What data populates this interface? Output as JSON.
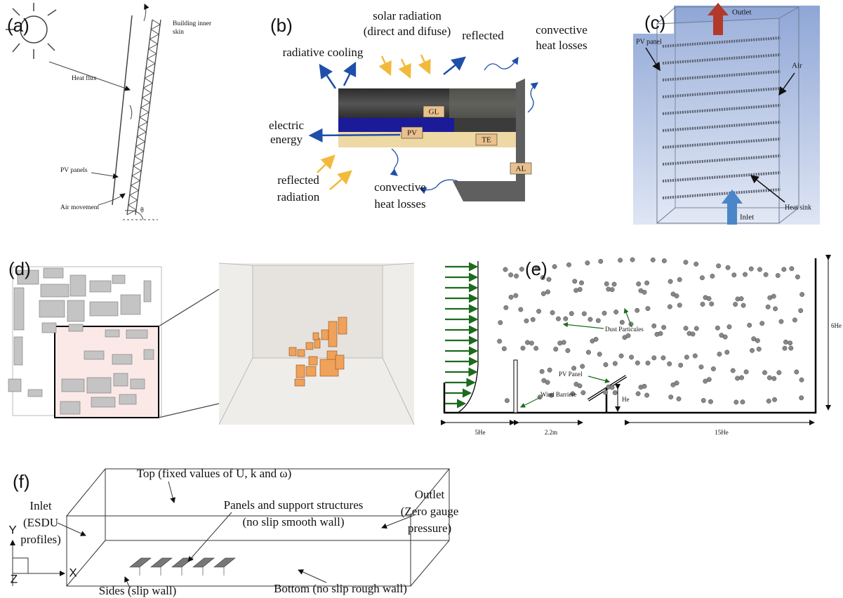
{
  "panels": [
    {
      "label": "(a)",
      "texts": [
        "Building inner",
        "skin",
        "Heat flux",
        "PV panels",
        "Air movement",
        "θ"
      ]
    },
    {
      "label": "(b)",
      "texts": [
        "solar radiation",
        "(direct and difuse)",
        "reflected",
        "radiative cooling",
        "convective",
        "heat losses",
        "electric",
        "energy",
        "GL",
        "PV",
        "TE",
        "AL",
        "reflected",
        "radiation",
        "convective",
        "heat losses"
      ]
    },
    {
      "label": "(c)",
      "texts": [
        "Outlet",
        "PV panel",
        "Air",
        "Heat sink",
        "Inlet"
      ]
    },
    {
      "label": "(d)"
    },
    {
      "label": "(e)",
      "texts": [
        "Dust Particules",
        "PV Panel",
        "Wind Barriere",
        "He",
        "6He",
        "5He",
        "2.2m",
        "15He"
      ]
    },
    {
      "label": "(f)",
      "texts": [
        "Top (fixed values of U, k and ω)",
        "Inlet",
        "(ESDU",
        "profiles)",
        "Outlet",
        "(Zero gauge",
        "pressure)",
        "Panels and support structures",
        "(no slip smooth wall)",
        "Sides (slip wall)",
        "Bottom (no slip rough wall)",
        "Y",
        "Z",
        "X"
      ]
    }
  ]
}
